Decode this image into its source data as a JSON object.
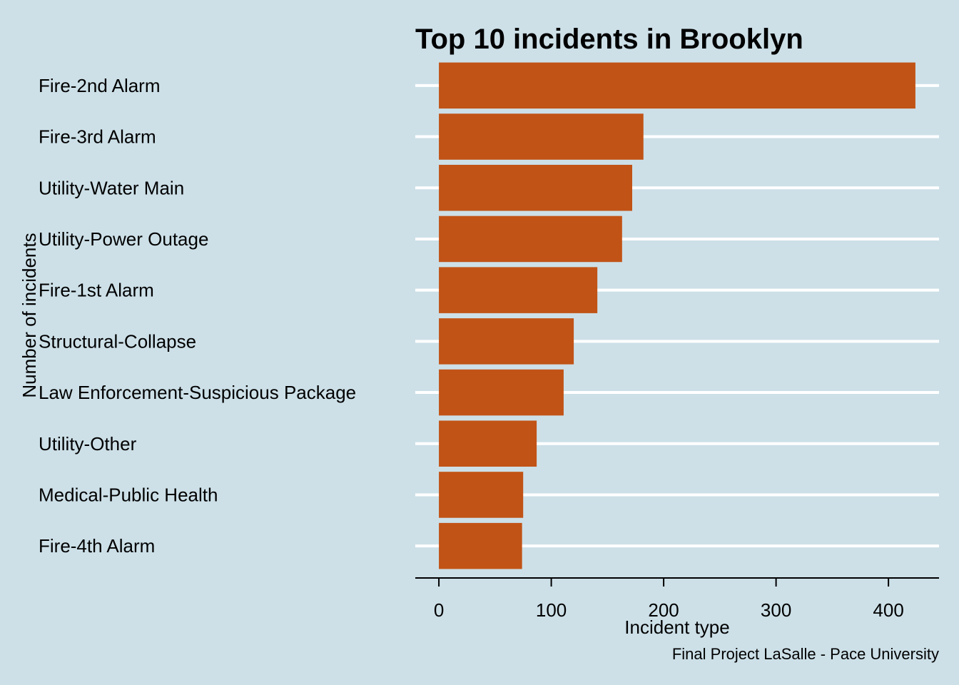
{
  "chart_data": {
    "type": "bar",
    "orientation": "horizontal",
    "title": "Top 10 incidents in Brooklyn",
    "xlabel": "Incident type",
    "ylabel": "Number of incidents",
    "caption": "Final Project LaSalle - Pace University",
    "categories": [
      "Fire-2nd Alarm",
      "Fire-3rd Alarm",
      "Utility-Water Main",
      "Utility-Power Outage",
      "Fire-1st Alarm",
      "Structural-Collapse",
      "Law Enforcement-Suspicious Package",
      "Utility-Other",
      "Medical-Public Health",
      "Fire-4th Alarm"
    ],
    "values": [
      424,
      182,
      172,
      163,
      141,
      120,
      111,
      87,
      75,
      74
    ],
    "xticks": [
      0,
      100,
      200,
      300,
      400
    ],
    "xlim": [
      -21,
      445
    ],
    "grid": "horizontal major lines only",
    "legend": "none",
    "colors": {
      "background": "#cde0e8",
      "bar": "#c15316",
      "grid": "#ffffff",
      "text": "#000000"
    }
  }
}
